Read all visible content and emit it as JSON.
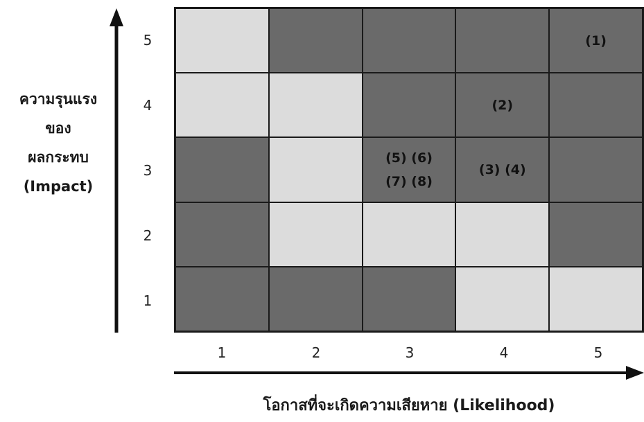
{
  "y_axis": {
    "title": "ความรุนแรง\nของ\nผลกระทบ\n(Impact)",
    "ticks": [
      "5",
      "4",
      "3",
      "2",
      "1"
    ]
  },
  "x_axis": {
    "title": "โอกาสที่จะเกิดความเสียหาย (Likelihood)",
    "ticks": [
      "1",
      "2",
      "3",
      "4",
      "5"
    ]
  },
  "colors": {
    "light": "#dcdcdc",
    "dark": "#6a6a6a",
    "grid": "#1a1a1a"
  },
  "rows": [
    {
      "impact": "5",
      "cells": [
        {
          "likelihood": "1",
          "shade": "light",
          "label": ""
        },
        {
          "likelihood": "2",
          "shade": "dark",
          "label": ""
        },
        {
          "likelihood": "3",
          "shade": "dark",
          "label": ""
        },
        {
          "likelihood": "4",
          "shade": "dark",
          "label": ""
        },
        {
          "likelihood": "5",
          "shade": "dark",
          "label": "(1)"
        }
      ]
    },
    {
      "impact": "4",
      "cells": [
        {
          "likelihood": "1",
          "shade": "light",
          "label": ""
        },
        {
          "likelihood": "2",
          "shade": "light",
          "label": ""
        },
        {
          "likelihood": "3",
          "shade": "dark",
          "label": ""
        },
        {
          "likelihood": "4",
          "shade": "dark",
          "label": "(2)"
        },
        {
          "likelihood": "5",
          "shade": "dark",
          "label": ""
        }
      ]
    },
    {
      "impact": "3",
      "cells": [
        {
          "likelihood": "1",
          "shade": "dark",
          "label": ""
        },
        {
          "likelihood": "2",
          "shade": "light",
          "label": ""
        },
        {
          "likelihood": "3",
          "shade": "dark",
          "label": "(5) (6)\n(7) (8)"
        },
        {
          "likelihood": "4",
          "shade": "dark",
          "label": "(3) (4)"
        },
        {
          "likelihood": "5",
          "shade": "dark",
          "label": ""
        }
      ]
    },
    {
      "impact": "2",
      "cells": [
        {
          "likelihood": "1",
          "shade": "dark",
          "label": ""
        },
        {
          "likelihood": "2",
          "shade": "light",
          "label": ""
        },
        {
          "likelihood": "3",
          "shade": "light",
          "label": ""
        },
        {
          "likelihood": "4",
          "shade": "light",
          "label": ""
        },
        {
          "likelihood": "5",
          "shade": "dark",
          "label": ""
        }
      ]
    },
    {
      "impact": "1",
      "cells": [
        {
          "likelihood": "1",
          "shade": "dark",
          "label": ""
        },
        {
          "likelihood": "2",
          "shade": "dark",
          "label": ""
        },
        {
          "likelihood": "3",
          "shade": "dark",
          "label": ""
        },
        {
          "likelihood": "4",
          "shade": "light",
          "label": ""
        },
        {
          "likelihood": "5",
          "shade": "light",
          "label": ""
        }
      ]
    }
  ]
}
